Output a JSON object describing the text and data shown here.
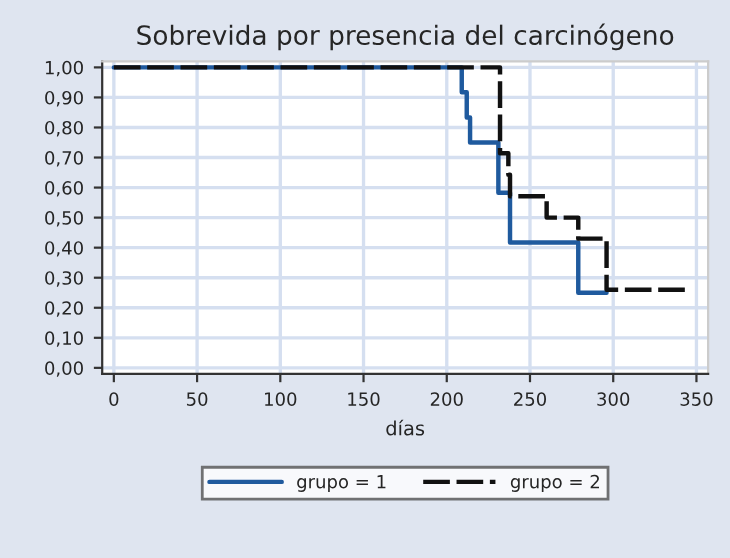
{
  "chart_data": {
    "type": "step",
    "title": "Sobrevida por presencia del carcinógeno",
    "xlabel": "días",
    "series": [
      {
        "name": "grupo = 1",
        "color": "#1f5a9e",
        "line_style": "solid",
        "x": [
          0,
          209,
          212,
          214,
          231,
          238,
          279,
          296
        ],
        "values": [
          1.0,
          0.917,
          0.833,
          0.75,
          0.583,
          0.417,
          0.25,
          0.25
        ]
      },
      {
        "name": "grupo = 2",
        "color": "#111111",
        "line_style": "dashed",
        "x": [
          0,
          232,
          237,
          238,
          260,
          279,
          296,
          344
        ],
        "values": [
          1.0,
          0.714,
          0.643,
          0.571,
          0.5,
          0.43,
          0.26,
          0.26
        ]
      }
    ],
    "xlim": [
      -7,
      357
    ],
    "xticks": [
      0,
      50,
      100,
      150,
      200,
      250,
      300,
      350
    ],
    "ylim": [
      -0.02,
      1.02
    ],
    "yticks": [
      {
        "value": 0,
        "label": "0,00"
      },
      {
        "value": 0.1,
        "label": "0,10"
      },
      {
        "value": 0.2,
        "label": "0,20"
      },
      {
        "value": 0.3,
        "label": "0,30"
      },
      {
        "value": 0.4,
        "label": "0,40"
      },
      {
        "value": 0.5,
        "label": "0,50"
      },
      {
        "value": 0.6,
        "label": "0,60"
      },
      {
        "value": 0.7,
        "label": "0,70"
      },
      {
        "value": 0.8,
        "label": "0,80"
      },
      {
        "value": 0.9,
        "label": "0,90"
      },
      {
        "value": 1,
        "label": "1,00"
      }
    ],
    "grid": true,
    "legend": "bottom"
  }
}
